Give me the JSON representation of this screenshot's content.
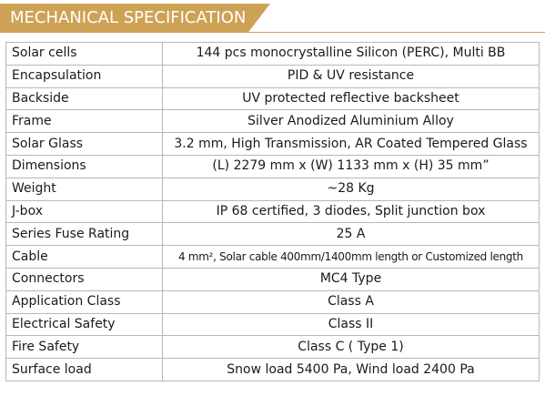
{
  "header": {
    "title": "MECHANICAL SPECIFICATION"
  },
  "colors": {
    "accent": "#cea255",
    "border": "#b8b8b8"
  },
  "rows": [
    {
      "label": "Solar cells",
      "value": "144 pcs monocrystalline Silicon (PERC), Multi BB"
    },
    {
      "label": "Encapsulation",
      "value": "PID & UV resistance"
    },
    {
      "label": "Backside",
      "value": "UV protected reflective backsheet"
    },
    {
      "label": "Frame",
      "value": "Silver Anodized Aluminium Alloy"
    },
    {
      "label": "Solar Glass",
      "value": "3.2 mm, High Transmission, AR Coated Tempered Glass"
    },
    {
      "label": "Dimensions",
      "value": "(L) 2279 mm x (W) 1133 mm x (H) 35 mm”"
    },
    {
      "label": "Weight",
      "value": "~28 Kg"
    },
    {
      "label": "J-box",
      "value": "IP 68 certified, 3 diodes, Split junction box"
    },
    {
      "label": "Series Fuse Rating",
      "value": "25 A"
    },
    {
      "label": "Cable",
      "value": "4 mm², Solar cable 400mm/1400mm length or Customized length"
    },
    {
      "label": "Connectors",
      "value": "MC4 Type"
    },
    {
      "label": "Application Class",
      "value": "Class A"
    },
    {
      "label": "Electrical Safety",
      "value": "Class II"
    },
    {
      "label": "Fire Safety",
      "value": "Class C ( Type 1)"
    },
    {
      "label": "Surface load",
      "value": "Snow load 5400 Pa, Wind load 2400 Pa"
    }
  ]
}
